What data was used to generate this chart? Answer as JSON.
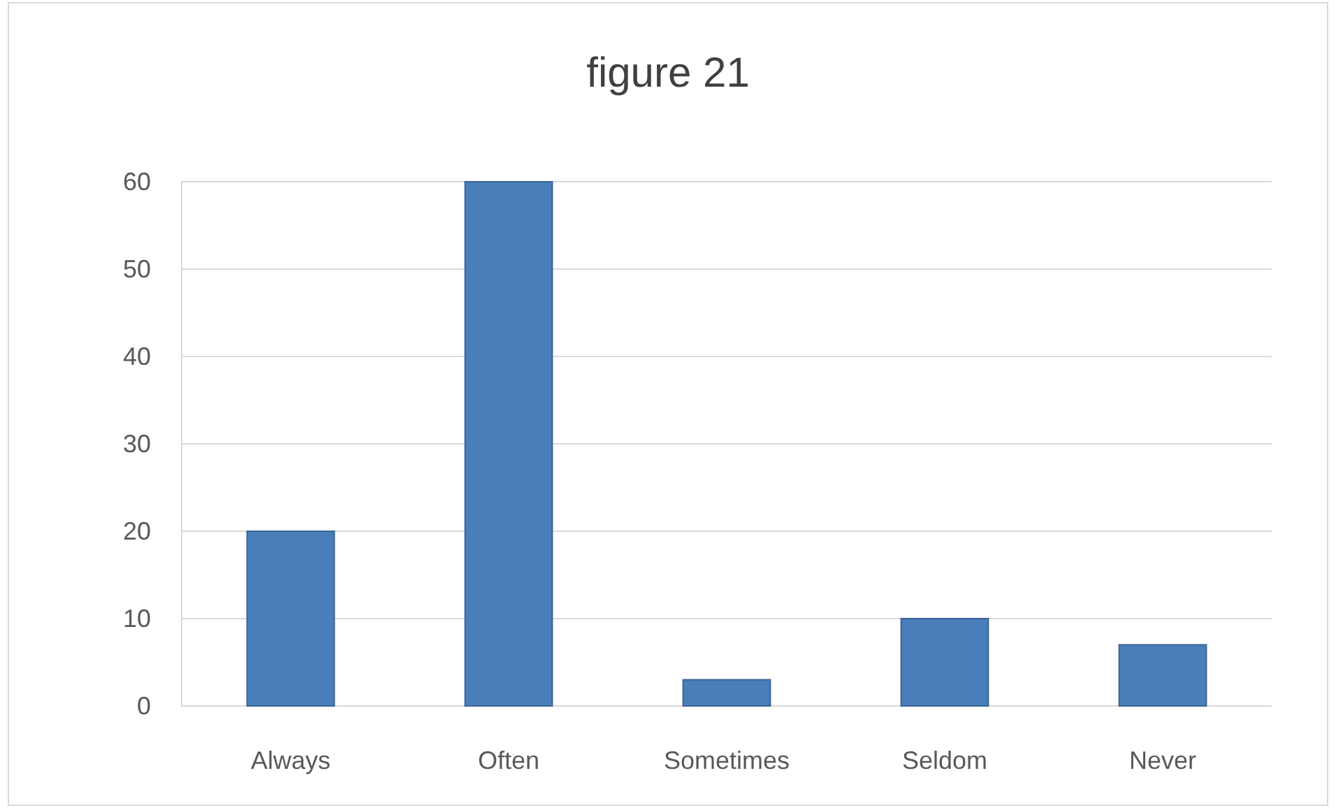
{
  "chart_data": {
    "type": "bar",
    "title": "figure 21",
    "categories": [
      "Always",
      "Often",
      "Sometimes",
      "Seldom",
      "Never"
    ],
    "values": [
      20,
      60,
      3,
      10,
      7
    ],
    "color": "#4a7ebb",
    "ylim": [
      0,
      60
    ],
    "yticks": [
      0,
      10,
      20,
      30,
      40,
      50,
      60
    ],
    "grid": "y"
  }
}
